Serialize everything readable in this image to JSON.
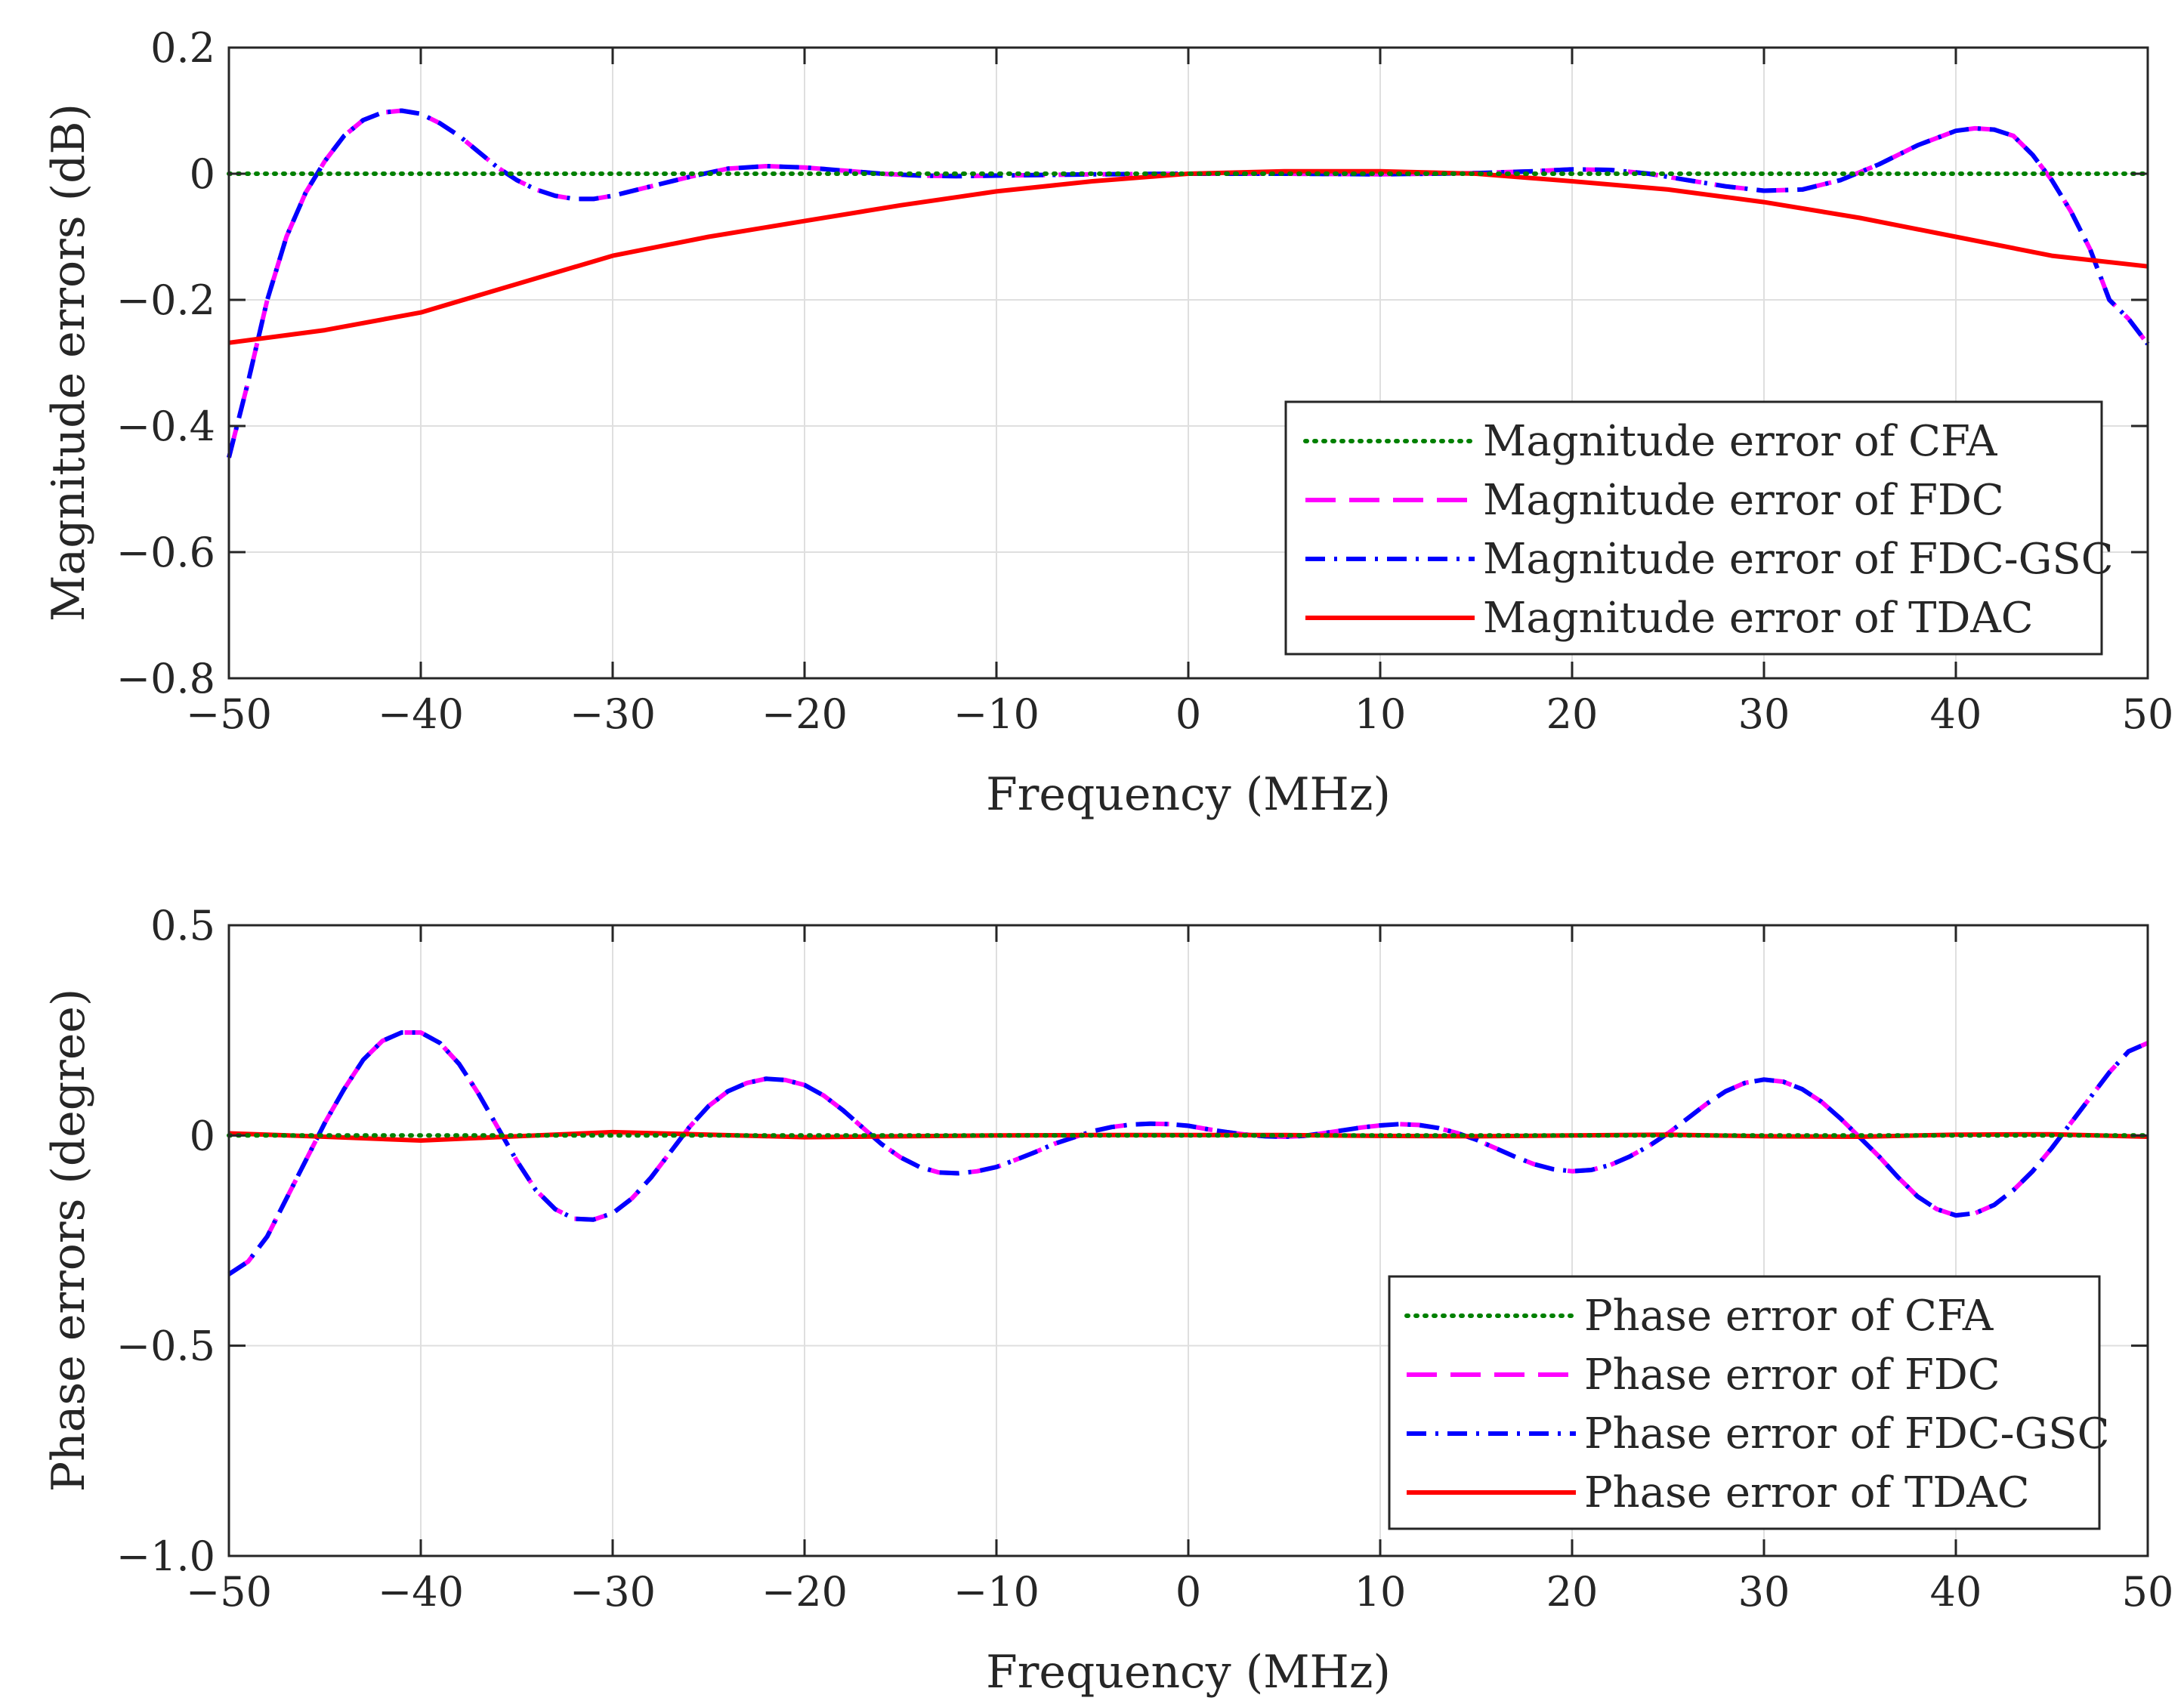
{
  "chart_data": [
    {
      "type": "line",
      "xlabel": "Frequency (MHz)",
      "ylabel": "Magnitude errors (dB)",
      "xlim": [
        -50,
        50
      ],
      "ylim": [
        -0.8,
        0.2
      ],
      "grid": true,
      "legend_position": "bottom-right",
      "xticks": [
        -50,
        -40,
        -30,
        -20,
        -10,
        0,
        10,
        20,
        30,
        40,
        50
      ],
      "xtick_labels": [
        "−50",
        "−40",
        "−30",
        "−20",
        "−10",
        "0",
        "10",
        "20",
        "30",
        "40",
        "50"
      ],
      "yticks": [
        0.2,
        0,
        -0.2,
        -0.4,
        -0.6,
        -0.8
      ],
      "ytick_labels": [
        "0.2",
        "0",
        "−0.2",
        "−0.4",
        "−0.6",
        "−0.8"
      ],
      "series": [
        {
          "name": "Magnitude error of CFA",
          "color": "#008000",
          "style": "dotted",
          "x": [
            -50,
            50
          ],
          "y": [
            0,
            0
          ]
        },
        {
          "name": "Magnitude error of FDC",
          "color": "#ff00ff",
          "style": "dashed",
          "x": [
            -50,
            -49,
            -48,
            -47,
            -46,
            -45,
            -44,
            -43,
            -42,
            -41,
            -40,
            -39,
            -38,
            -37,
            -36,
            -35,
            -34,
            -33,
            -32,
            -31,
            -30,
            -28,
            -26,
            -24,
            -22,
            -20,
            -18,
            -16,
            -14,
            -12,
            -10,
            -5,
            0,
            5,
            10,
            15,
            18,
            20,
            22,
            24,
            26,
            28,
            30,
            32,
            34,
            36,
            38,
            40,
            41,
            42,
            43,
            44,
            45,
            46,
            47,
            48,
            49,
            50
          ],
          "y": [
            -0.45,
            -0.33,
            -0.2,
            -0.1,
            -0.03,
            0.02,
            0.06,
            0.085,
            0.097,
            0.1,
            0.095,
            0.08,
            0.06,
            0.035,
            0.01,
            -0.01,
            -0.025,
            -0.035,
            -0.04,
            -0.04,
            -0.035,
            -0.02,
            -0.005,
            0.008,
            0.012,
            0.01,
            0.005,
            0,
            -0.003,
            -0.004,
            -0.003,
            -0.001,
            0,
            0,
            -0.001,
            0.001,
            0.004,
            0.007,
            0.006,
            0.0,
            -0.01,
            -0.02,
            -0.027,
            -0.025,
            -0.01,
            0.015,
            0.045,
            0.068,
            0.072,
            0.07,
            0.06,
            0.03,
            -0.01,
            -0.06,
            -0.12,
            -0.2,
            -0.23,
            -0.27
          ]
        },
        {
          "name": "Magnitude error of FDC-GSC",
          "color": "#0000ff",
          "style": "dashdot",
          "x": [
            -50,
            -49,
            -48,
            -47,
            -46,
            -45,
            -44,
            -43,
            -42,
            -41,
            -40,
            -39,
            -38,
            -37,
            -36,
            -35,
            -34,
            -33,
            -32,
            -31,
            -30,
            -28,
            -26,
            -24,
            -22,
            -20,
            -18,
            -16,
            -14,
            -12,
            -10,
            -5,
            0,
            5,
            10,
            15,
            18,
            20,
            22,
            24,
            26,
            28,
            30,
            32,
            34,
            36,
            38,
            40,
            41,
            42,
            43,
            44,
            45,
            46,
            47,
            48,
            49,
            50
          ],
          "y": [
            -0.45,
            -0.33,
            -0.2,
            -0.1,
            -0.03,
            0.02,
            0.06,
            0.085,
            0.097,
            0.1,
            0.095,
            0.08,
            0.06,
            0.035,
            0.01,
            -0.01,
            -0.025,
            -0.035,
            -0.04,
            -0.04,
            -0.035,
            -0.02,
            -0.005,
            0.008,
            0.012,
            0.01,
            0.005,
            0,
            -0.003,
            -0.004,
            -0.003,
            -0.001,
            0,
            0,
            -0.001,
            0.001,
            0.004,
            0.007,
            0.006,
            0.0,
            -0.01,
            -0.02,
            -0.027,
            -0.025,
            -0.01,
            0.015,
            0.045,
            0.068,
            0.072,
            0.07,
            0.06,
            0.03,
            -0.01,
            -0.06,
            -0.12,
            -0.2,
            -0.23,
            -0.27
          ]
        },
        {
          "name": "Magnitude error of TDAC",
          "color": "#ff0000",
          "style": "solid",
          "x": [
            -50,
            -45,
            -40,
            -35,
            -30,
            -25,
            -20,
            -15,
            -10,
            -5,
            0,
            5,
            10,
            15,
            20,
            25,
            30,
            35,
            40,
            45,
            50
          ],
          "y": [
            -0.268,
            -0.248,
            -0.22,
            -0.175,
            -0.13,
            -0.1,
            -0.075,
            -0.05,
            -0.028,
            -0.012,
            0,
            0.004,
            0.004,
            0,
            -0.012,
            -0.025,
            -0.045,
            -0.07,
            -0.1,
            -0.13,
            -0.147
          ]
        }
      ]
    },
    {
      "type": "line",
      "xlabel": "Frequency (MHz)",
      "ylabel": "Phase errors (degree)",
      "xlim": [
        -50,
        50
      ],
      "ylim": [
        -1.0,
        0.5
      ],
      "grid": true,
      "legend_position": "bottom-right",
      "xticks": [
        -50,
        -40,
        -30,
        -20,
        -10,
        0,
        10,
        20,
        30,
        40,
        50
      ],
      "xtick_labels": [
        "−50",
        "−40",
        "−30",
        "−20",
        "−10",
        "0",
        "10",
        "20",
        "30",
        "40",
        "50"
      ],
      "yticks": [
        0.5,
        0,
        -0.5,
        -1.0
      ],
      "ytick_labels": [
        "0.5",
        "0",
        "−0.5",
        "−1.0"
      ],
      "series": [
        {
          "name": "Phase error of CFA",
          "color": "#008000",
          "style": "dotted",
          "x": [
            -50,
            50
          ],
          "y": [
            0,
            0
          ]
        },
        {
          "name": "Phase error of FDC",
          "color": "#ff00ff",
          "style": "dashed",
          "x": [
            -50,
            -49,
            -48,
            -47,
            -46,
            -45,
            -44,
            -43,
            -42,
            -41,
            -40,
            -39,
            -38,
            -37,
            -36,
            -35,
            -34,
            -33,
            -32,
            -31,
            -30,
            -29,
            -28,
            -27,
            -26,
            -25,
            -24,
            -23,
            -22,
            -21,
            -20,
            -19,
            -18,
            -17,
            -16,
            -15,
            -14,
            -13,
            -12,
            -11,
            -10,
            -9,
            -8,
            -7,
            -6,
            -5,
            -4,
            -3,
            -2,
            -1,
            0,
            1,
            2,
            3,
            4,
            5,
            6,
            7,
            8,
            9,
            10,
            11,
            12,
            13,
            14,
            15,
            16,
            17,
            18,
            19,
            20,
            21,
            22,
            23,
            24,
            25,
            26,
            27,
            28,
            29,
            30,
            31,
            32,
            33,
            34,
            35,
            36,
            37,
            38,
            39,
            40,
            41,
            42,
            43,
            44,
            45,
            46,
            47,
            48,
            49,
            50
          ],
          "y": [
            -0.33,
            -0.3,
            -0.24,
            -0.15,
            -0.06,
            0.03,
            0.11,
            0.18,
            0.225,
            0.245,
            0.245,
            0.22,
            0.17,
            0.1,
            0.02,
            -0.06,
            -0.13,
            -0.175,
            -0.198,
            -0.2,
            -0.185,
            -0.15,
            -0.1,
            -0.04,
            0.02,
            0.07,
            0.105,
            0.125,
            0.135,
            0.132,
            0.12,
            0.095,
            0.06,
            0.02,
            -0.02,
            -0.052,
            -0.075,
            -0.088,
            -0.09,
            -0.085,
            -0.075,
            -0.058,
            -0.04,
            -0.02,
            -0.005,
            0.01,
            0.02,
            0.026,
            0.028,
            0.027,
            0.023,
            0.015,
            0.008,
            0.002,
            -0.002,
            -0.003,
            -0.001,
            0.005,
            0.012,
            0.019,
            0.024,
            0.027,
            0.025,
            0.018,
            0.006,
            -0.01,
            -0.03,
            -0.05,
            -0.068,
            -0.08,
            -0.085,
            -0.082,
            -0.07,
            -0.05,
            -0.025,
            0.005,
            0.04,
            0.075,
            0.105,
            0.125,
            0.133,
            0.128,
            0.11,
            0.08,
            0.04,
            -0.005,
            -0.05,
            -0.1,
            -0.145,
            -0.175,
            -0.19,
            -0.185,
            -0.165,
            -0.13,
            -0.085,
            -0.03,
            0.03,
            0.09,
            0.15,
            0.2,
            0.22
          ]
        },
        {
          "name": "Phase error of FDC-GSC",
          "color": "#0000ff",
          "style": "dashdot",
          "x": [
            -50,
            -49,
            -48,
            -47,
            -46,
            -45,
            -44,
            -43,
            -42,
            -41,
            -40,
            -39,
            -38,
            -37,
            -36,
            -35,
            -34,
            -33,
            -32,
            -31,
            -30,
            -29,
            -28,
            -27,
            -26,
            -25,
            -24,
            -23,
            -22,
            -21,
            -20,
            -19,
            -18,
            -17,
            -16,
            -15,
            -14,
            -13,
            -12,
            -11,
            -10,
            -9,
            -8,
            -7,
            -6,
            -5,
            -4,
            -3,
            -2,
            -1,
            0,
            1,
            2,
            3,
            4,
            5,
            6,
            7,
            8,
            9,
            10,
            11,
            12,
            13,
            14,
            15,
            16,
            17,
            18,
            19,
            20,
            21,
            22,
            23,
            24,
            25,
            26,
            27,
            28,
            29,
            30,
            31,
            32,
            33,
            34,
            35,
            36,
            37,
            38,
            39,
            40,
            41,
            42,
            43,
            44,
            45,
            46,
            47,
            48,
            49,
            50
          ],
          "y": [
            -0.33,
            -0.3,
            -0.24,
            -0.15,
            -0.06,
            0.03,
            0.11,
            0.18,
            0.225,
            0.245,
            0.245,
            0.22,
            0.17,
            0.1,
            0.02,
            -0.06,
            -0.13,
            -0.175,
            -0.198,
            -0.2,
            -0.185,
            -0.15,
            -0.1,
            -0.04,
            0.02,
            0.07,
            0.105,
            0.125,
            0.135,
            0.132,
            0.12,
            0.095,
            0.06,
            0.02,
            -0.02,
            -0.052,
            -0.075,
            -0.088,
            -0.09,
            -0.085,
            -0.075,
            -0.058,
            -0.04,
            -0.02,
            -0.005,
            0.01,
            0.02,
            0.026,
            0.028,
            0.027,
            0.023,
            0.015,
            0.008,
            0.002,
            -0.002,
            -0.003,
            -0.001,
            0.005,
            0.012,
            0.019,
            0.024,
            0.027,
            0.025,
            0.018,
            0.006,
            -0.01,
            -0.03,
            -0.05,
            -0.068,
            -0.08,
            -0.085,
            -0.082,
            -0.07,
            -0.05,
            -0.025,
            0.005,
            0.04,
            0.075,
            0.105,
            0.125,
            0.133,
            0.128,
            0.11,
            0.08,
            0.04,
            -0.005,
            -0.05,
            -0.1,
            -0.145,
            -0.175,
            -0.19,
            -0.185,
            -0.165,
            -0.13,
            -0.085,
            -0.03,
            0.03,
            0.09,
            0.15,
            0.2,
            0.22
          ]
        },
        {
          "name": "Phase error of TDAC",
          "color": "#ff0000",
          "style": "solid",
          "x": [
            -50,
            -45,
            -40,
            -35,
            -30,
            -25,
            -20,
            -15,
            -10,
            -5,
            0,
            5,
            10,
            15,
            20,
            25,
            30,
            35,
            40,
            45,
            50
          ],
          "y": [
            0.005,
            -0.003,
            -0.012,
            -0.002,
            0.008,
            0.002,
            -0.004,
            -0.002,
            0.0,
            0.001,
            0.001,
            0.001,
            -0.001,
            -0.002,
            0.0,
            0.002,
            -0.002,
            -0.003,
            0.002,
            0.003,
            -0.003
          ]
        }
      ]
    }
  ]
}
